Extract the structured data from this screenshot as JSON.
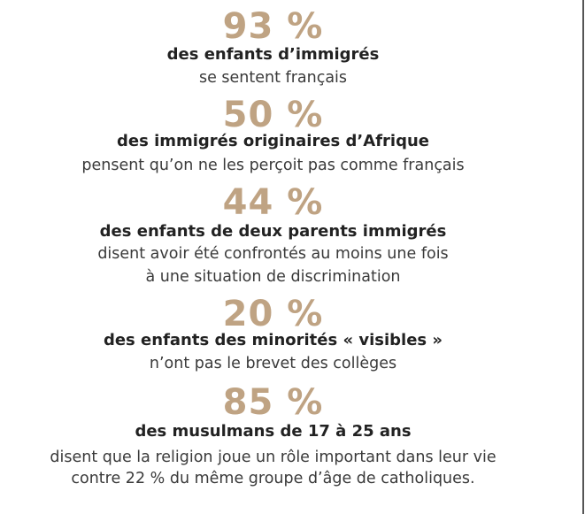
{
  "accent_color": "#bfa383",
  "stats": [
    {
      "value": "93 %",
      "headline": "des enfants d’immigrés",
      "lines": [
        "se sentent français"
      ]
    },
    {
      "value": "50 %",
      "headline": "des immigrés originaires d’Afrique",
      "lines": [
        "pensent qu’on ne les perçoit pas comme français"
      ]
    },
    {
      "value": "44 %",
      "headline": "des enfants de deux parents immigrés",
      "lines": [
        "disent avoir été confrontés au moins une fois",
        "à une situation de discrimination"
      ]
    },
    {
      "value": "20 %",
      "headline": "des enfants des minorités « visibles »",
      "lines": [
        "n’ont pas le brevet des collèges"
      ]
    },
    {
      "value": "85 %",
      "headline": "des musulmans de 17 à 25 ans",
      "lines": [
        "disent que la religion joue un rôle important dans leur vie",
        "contre 22 % du même groupe d’âge de catholiques."
      ]
    }
  ]
}
